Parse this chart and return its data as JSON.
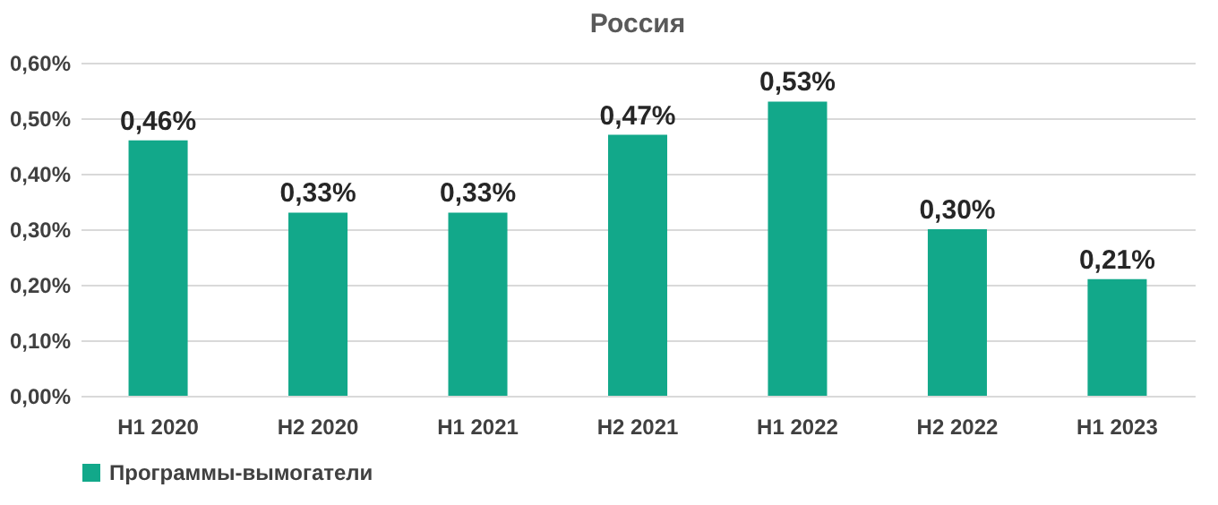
{
  "chart_data": {
    "type": "bar",
    "title": "Россия",
    "categories": [
      "H1 2020",
      "H2 2020",
      "H1 2021",
      "H2 2021",
      "H1 2022",
      "H2 2022",
      "H1 2023"
    ],
    "series": [
      {
        "name": "Программы-вымогатели",
        "color": "#12a88a",
        "values": [
          0.46,
          0.33,
          0.33,
          0.47,
          0.53,
          0.3,
          0.21
        ],
        "value_labels": [
          "0,46%",
          "0,33%",
          "0,33%",
          "0,47%",
          "0,53%",
          "0,30%",
          "0,21%"
        ]
      }
    ],
    "ylim": [
      0,
      0.6
    ],
    "yticks": [
      {
        "value": 0,
        "label": "0,00%"
      },
      {
        "value": 0.1,
        "label": "0,10%"
      },
      {
        "value": 0.2,
        "label": "0,20%"
      },
      {
        "value": 0.3,
        "label": "0,30%"
      },
      {
        "value": 0.4,
        "label": "0,40%"
      },
      {
        "value": 0.5,
        "label": "0,50%"
      },
      {
        "value": 0.6,
        "label": "0,60%"
      }
    ],
    "grid": "y",
    "legend": "bottom"
  }
}
